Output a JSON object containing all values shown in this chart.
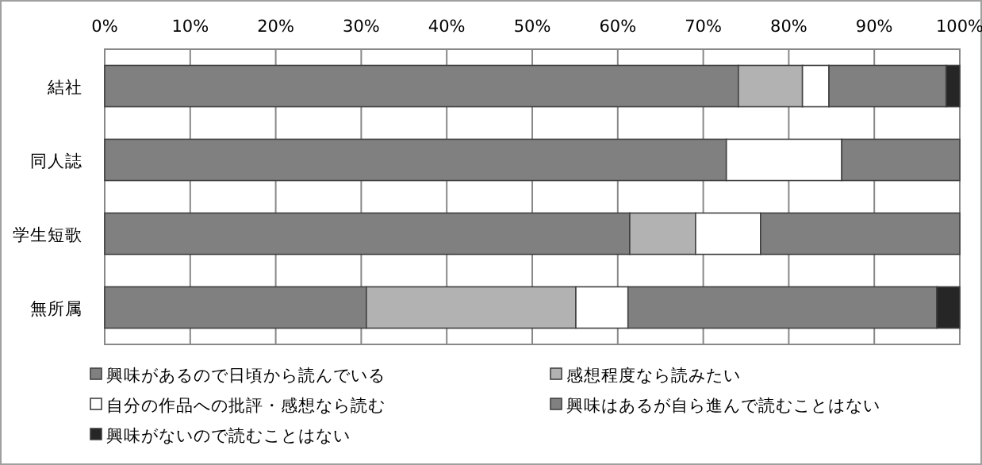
{
  "chart_data": {
    "type": "bar",
    "orientation": "horizontal",
    "stacked": true,
    "categories": [
      "結社",
      "同人誌",
      "学生短歌",
      "無所属"
    ],
    "series": [
      {
        "name": "興味があるので日頃から読んでいる",
        "color": "#808080",
        "values": [
          74.1,
          72.7,
          61.4,
          30.6
        ]
      },
      {
        "name": "感想程度なら読みたい",
        "color": "#b2b2b2",
        "values": [
          7.5,
          0,
          7.7,
          24.5
        ]
      },
      {
        "name": "自分の作品への批評・感想なら読む",
        "color": "#ffffff",
        "values": [
          3.1,
          13.5,
          7.6,
          6.1
        ]
      },
      {
        "name": "興味はあるが自ら進んで読むことはない",
        "color": "#808080",
        "values": [
          13.7,
          13.8,
          23.3,
          36.1
        ]
      },
      {
        "name": "興味がないので読むことはない",
        "color": "#262626",
        "values": [
          1.6,
          0,
          0,
          2.7
        ]
      }
    ],
    "xlim": [
      0,
      100
    ],
    "xticks": [
      {
        "value": 0,
        "label": "0%"
      },
      {
        "value": 10,
        "label": "10%"
      },
      {
        "value": 20,
        "label": "20%"
      },
      {
        "value": 30,
        "label": "30%"
      },
      {
        "value": 40,
        "label": "40%"
      },
      {
        "value": 50,
        "label": "50%"
      },
      {
        "value": 60,
        "label": "60%"
      },
      {
        "value": 70,
        "label": "70%"
      },
      {
        "value": 80,
        "label": "80%"
      },
      {
        "value": 90,
        "label": "90%"
      },
      {
        "value": 100,
        "label": "100%"
      }
    ],
    "grid": "x",
    "legend": "bottom"
  }
}
